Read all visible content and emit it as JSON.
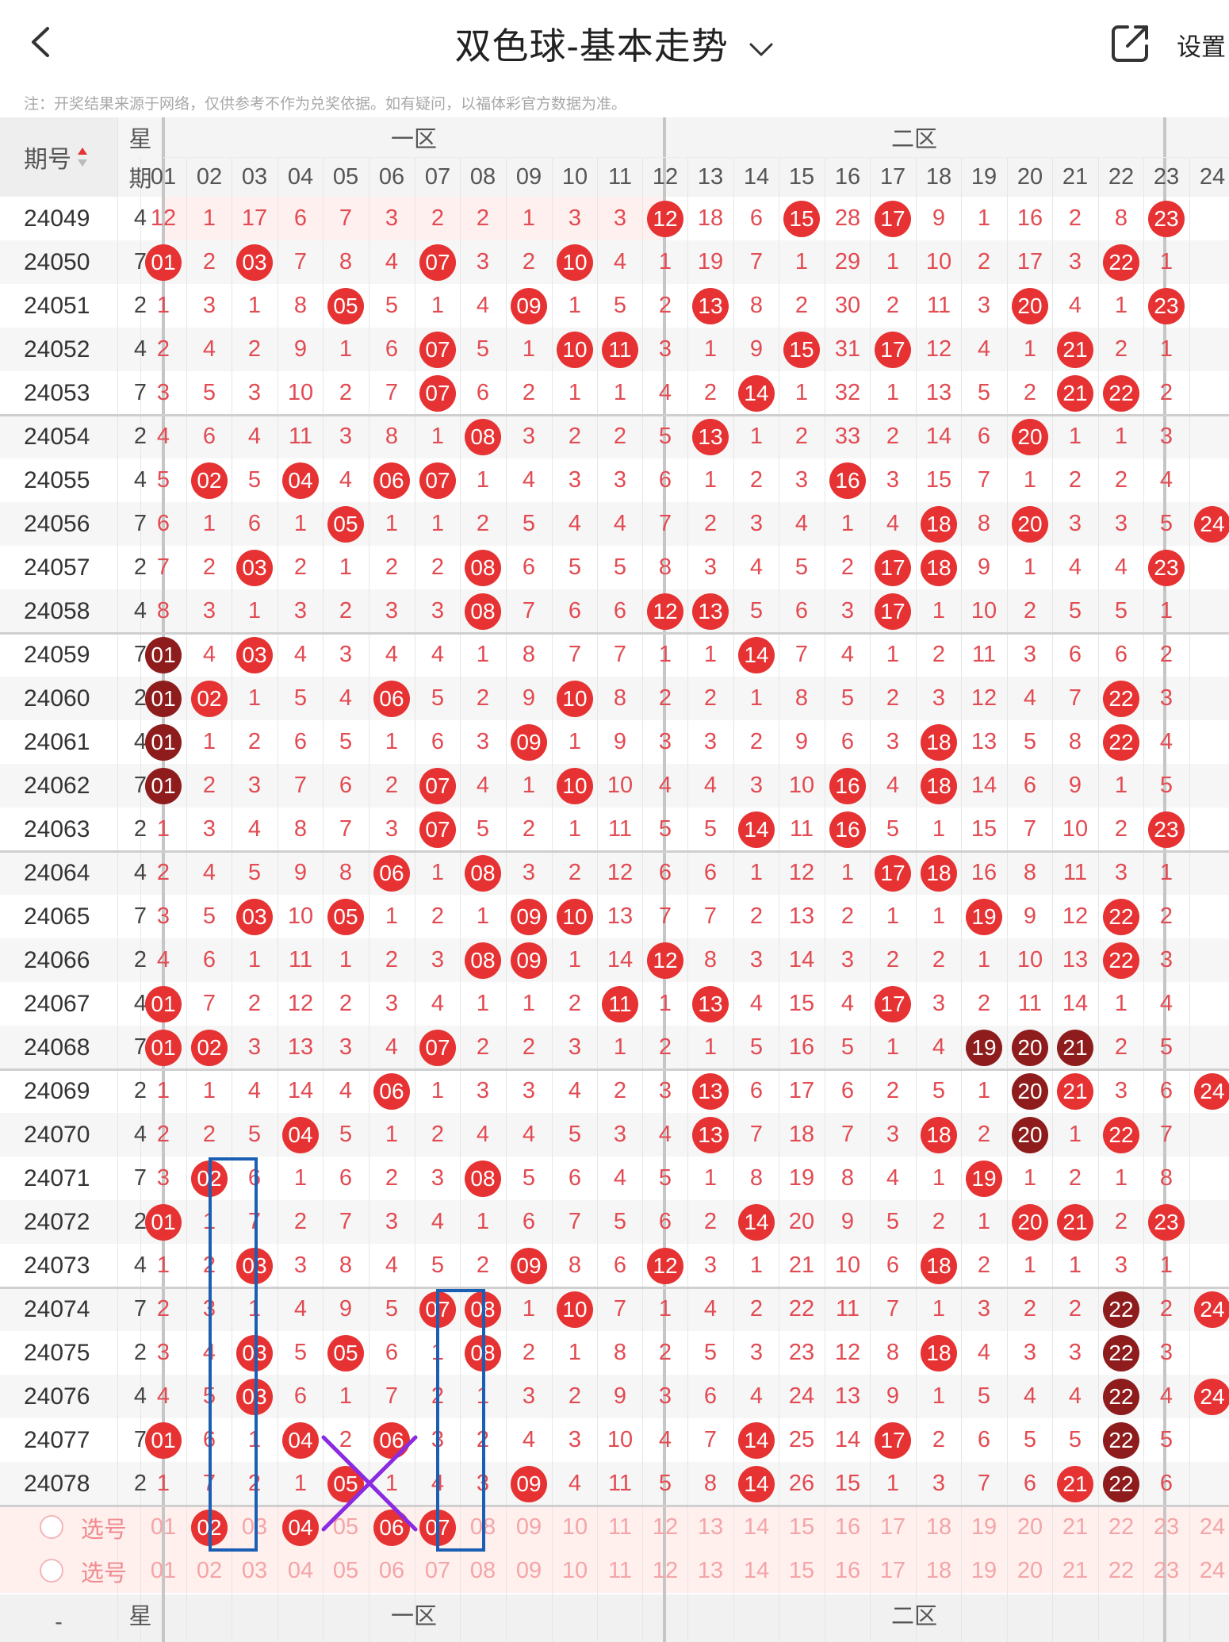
{
  "header": {
    "title": "双色球-基本走势",
    "settings_label": "设置",
    "notice": "注：开奖结果来源于网络，仅供参考不作为兑奖依据。如有疑问，以福体彩官方数据为准。"
  },
  "icons": {
    "back": "chevron-left-icon",
    "title_dropdown": "chevron-down-icon",
    "share": "share-icon",
    "sort": "sort-icon"
  },
  "colors": {
    "ball": "#e63232",
    "ball_repeat": "#8e1c1c",
    "miss_text": "#e24b52",
    "mark_box": "#1a5fb4",
    "mark_cross": "#8a2be2"
  },
  "table": {
    "issue_header": "期号",
    "week_header": "星期",
    "zone_labels": [
      "一区",
      "二区"
    ],
    "columns": [
      "01",
      "02",
      "03",
      "04",
      "05",
      "06",
      "07",
      "08",
      "09",
      "10",
      "11",
      "12",
      "13",
      "14",
      "15",
      "16",
      "17",
      "18",
      "19",
      "20",
      "21",
      "22",
      "23",
      "24"
    ],
    "rows": [
      {
        "issue": "24049",
        "week": "4",
        "cells": [
          "12",
          "1",
          "17",
          "6",
          "7",
          "3",
          "2",
          "2",
          "1",
          "3",
          "3",
          "B12",
          "18",
          "6",
          "B15",
          "28",
          "B17",
          "9",
          "1",
          "16",
          "2",
          "8",
          "B23",
          ""
        ]
      },
      {
        "issue": "24050",
        "week": "7",
        "cells": [
          "B01",
          "2",
          "B03",
          "7",
          "8",
          "4",
          "B07",
          "3",
          "2",
          "B10",
          "4",
          "1",
          "19",
          "7",
          "1",
          "29",
          "1",
          "10",
          "2",
          "17",
          "3",
          "B22",
          "1",
          ""
        ]
      },
      {
        "issue": "24051",
        "week": "2",
        "cells": [
          "1",
          "3",
          "1",
          "8",
          "B05",
          "5",
          "1",
          "4",
          "B09",
          "1",
          "5",
          "2",
          "B13",
          "8",
          "2",
          "30",
          "2",
          "11",
          "3",
          "B20",
          "4",
          "1",
          "B23",
          ""
        ]
      },
      {
        "issue": "24052",
        "week": "4",
        "cells": [
          "2",
          "4",
          "2",
          "9",
          "1",
          "6",
          "B07",
          "5",
          "1",
          "B10",
          "B11",
          "3",
          "1",
          "9",
          "B15",
          "31",
          "B17",
          "12",
          "4",
          "1",
          "B21",
          "2",
          "1",
          ""
        ]
      },
      {
        "issue": "24053",
        "week": "7",
        "cells": [
          "3",
          "5",
          "3",
          "10",
          "2",
          "7",
          "B07",
          "6",
          "2",
          "1",
          "1",
          "4",
          "2",
          "B14",
          "1",
          "32",
          "1",
          "13",
          "5",
          "2",
          "B21",
          "B22",
          "2",
          ""
        ]
      },
      {
        "issue": "24054",
        "week": "2",
        "cells": [
          "4",
          "6",
          "4",
          "11",
          "3",
          "8",
          "1",
          "B08",
          "3",
          "2",
          "2",
          "5",
          "B13",
          "1",
          "2",
          "33",
          "2",
          "14",
          "6",
          "B20",
          "1",
          "1",
          "3",
          ""
        ]
      },
      {
        "issue": "24055",
        "week": "4",
        "cells": [
          "5",
          "B02",
          "5",
          "B04",
          "4",
          "B06",
          "B07",
          "1",
          "4",
          "3",
          "3",
          "6",
          "1",
          "2",
          "3",
          "B16",
          "3",
          "15",
          "7",
          "1",
          "2",
          "2",
          "4",
          ""
        ]
      },
      {
        "issue": "24056",
        "week": "7",
        "cells": [
          "6",
          "1",
          "6",
          "1",
          "B05",
          "1",
          "1",
          "2",
          "5",
          "4",
          "4",
          "7",
          "2",
          "3",
          "4",
          "1",
          "4",
          "B18",
          "8",
          "B20",
          "3",
          "3",
          "5",
          "B24"
        ]
      },
      {
        "issue": "24057",
        "week": "2",
        "cells": [
          "7",
          "2",
          "B03",
          "2",
          "1",
          "2",
          "2",
          "B08",
          "6",
          "5",
          "5",
          "8",
          "3",
          "4",
          "5",
          "2",
          "B17",
          "B18",
          "9",
          "1",
          "4",
          "4",
          "B23",
          ""
        ]
      },
      {
        "issue": "24058",
        "week": "4",
        "cells": [
          "8",
          "3",
          "1",
          "3",
          "2",
          "3",
          "3",
          "B08",
          "7",
          "6",
          "6",
          "B12",
          "B13",
          "5",
          "6",
          "3",
          "B17",
          "1",
          "10",
          "2",
          "5",
          "5",
          "1",
          ""
        ]
      },
      {
        "issue": "24059",
        "week": "7",
        "cells": [
          "D01",
          "4",
          "B03",
          "4",
          "3",
          "4",
          "4",
          "1",
          "8",
          "7",
          "7",
          "1",
          "1",
          "B14",
          "7",
          "4",
          "1",
          "2",
          "11",
          "3",
          "6",
          "6",
          "2",
          ""
        ]
      },
      {
        "issue": "24060",
        "week": "2",
        "cells": [
          "D01",
          "B02",
          "1",
          "5",
          "4",
          "B06",
          "5",
          "2",
          "9",
          "B10",
          "8",
          "2",
          "2",
          "1",
          "8",
          "5",
          "2",
          "3",
          "12",
          "4",
          "7",
          "B22",
          "3",
          ""
        ]
      },
      {
        "issue": "24061",
        "week": "4",
        "cells": [
          "D01",
          "1",
          "2",
          "6",
          "5",
          "1",
          "6",
          "3",
          "B09",
          "1",
          "9",
          "3",
          "3",
          "2",
          "9",
          "6",
          "3",
          "B18",
          "13",
          "5",
          "8",
          "B22",
          "4",
          ""
        ]
      },
      {
        "issue": "24062",
        "week": "7",
        "cells": [
          "D01",
          "2",
          "3",
          "7",
          "6",
          "2",
          "B07",
          "4",
          "1",
          "B10",
          "10",
          "4",
          "4",
          "3",
          "10",
          "B16",
          "4",
          "B18",
          "14",
          "6",
          "9",
          "1",
          "5",
          ""
        ]
      },
      {
        "issue": "24063",
        "week": "2",
        "cells": [
          "1",
          "3",
          "4",
          "8",
          "7",
          "3",
          "B07",
          "5",
          "2",
          "1",
          "11",
          "5",
          "5",
          "B14",
          "11",
          "B16",
          "5",
          "1",
          "15",
          "7",
          "10",
          "2",
          "B23",
          ""
        ]
      },
      {
        "issue": "24064",
        "week": "4",
        "cells": [
          "2",
          "4",
          "5",
          "9",
          "8",
          "B06",
          "1",
          "B08",
          "3",
          "2",
          "12",
          "6",
          "6",
          "1",
          "12",
          "1",
          "B17",
          "B18",
          "16",
          "8",
          "11",
          "3",
          "1",
          ""
        ]
      },
      {
        "issue": "24065",
        "week": "7",
        "cells": [
          "3",
          "5",
          "B03",
          "10",
          "B05",
          "1",
          "2",
          "1",
          "B09",
          "B10",
          "13",
          "7",
          "7",
          "2",
          "13",
          "2",
          "1",
          "1",
          "B19",
          "9",
          "12",
          "B22",
          "2",
          ""
        ]
      },
      {
        "issue": "24066",
        "week": "2",
        "cells": [
          "4",
          "6",
          "1",
          "11",
          "1",
          "2",
          "3",
          "B08",
          "B09",
          "1",
          "14",
          "B12",
          "8",
          "3",
          "14",
          "3",
          "2",
          "2",
          "1",
          "10",
          "13",
          "B22",
          "3",
          ""
        ]
      },
      {
        "issue": "24067",
        "week": "4",
        "cells": [
          "B01",
          "7",
          "2",
          "12",
          "2",
          "3",
          "4",
          "1",
          "1",
          "2",
          "B11",
          "1",
          "B13",
          "4",
          "15",
          "4",
          "B17",
          "3",
          "2",
          "11",
          "14",
          "1",
          "4",
          ""
        ]
      },
      {
        "issue": "24068",
        "week": "7",
        "cells": [
          "B01",
          "B02",
          "3",
          "13",
          "3",
          "4",
          "B07",
          "2",
          "2",
          "3",
          "1",
          "2",
          "1",
          "5",
          "16",
          "5",
          "1",
          "4",
          "D19",
          "D20",
          "D21",
          "2",
          "5",
          ""
        ]
      },
      {
        "issue": "24069",
        "week": "2",
        "cells": [
          "1",
          "1",
          "4",
          "14",
          "4",
          "B06",
          "1",
          "3",
          "3",
          "4",
          "2",
          "3",
          "B13",
          "6",
          "17",
          "6",
          "2",
          "5",
          "1",
          "D20",
          "B21",
          "3",
          "6",
          "B24"
        ]
      },
      {
        "issue": "24070",
        "week": "4",
        "cells": [
          "2",
          "2",
          "5",
          "B04",
          "5",
          "1",
          "2",
          "4",
          "4",
          "5",
          "3",
          "4",
          "B13",
          "7",
          "18",
          "7",
          "3",
          "B18",
          "2",
          "D20",
          "1",
          "B22",
          "7",
          ""
        ]
      },
      {
        "issue": "24071",
        "week": "7",
        "cells": [
          "3",
          "B02",
          "6",
          "1",
          "6",
          "2",
          "3",
          "B08",
          "5",
          "6",
          "4",
          "5",
          "1",
          "8",
          "19",
          "8",
          "4",
          "1",
          "B19",
          "1",
          "2",
          "1",
          "8",
          ""
        ]
      },
      {
        "issue": "24072",
        "week": "2",
        "cells": [
          "B01",
          "1",
          "7",
          "2",
          "7",
          "3",
          "4",
          "1",
          "6",
          "7",
          "5",
          "6",
          "2",
          "B14",
          "20",
          "9",
          "5",
          "2",
          "1",
          "B20",
          "B21",
          "2",
          "B23",
          ""
        ]
      },
      {
        "issue": "24073",
        "week": "4",
        "cells": [
          "1",
          "2",
          "B03",
          "3",
          "8",
          "4",
          "5",
          "2",
          "B09",
          "8",
          "6",
          "B12",
          "3",
          "1",
          "21",
          "10",
          "6",
          "B18",
          "2",
          "1",
          "1",
          "3",
          "1",
          ""
        ]
      },
      {
        "issue": "24074",
        "week": "7",
        "cells": [
          "2",
          "3",
          "1",
          "4",
          "9",
          "5",
          "B07",
          "B08",
          "1",
          "B10",
          "7",
          "1",
          "4",
          "2",
          "22",
          "11",
          "7",
          "1",
          "3",
          "2",
          "2",
          "D22",
          "2",
          "B24"
        ]
      },
      {
        "issue": "24075",
        "week": "2",
        "cells": [
          "3",
          "4",
          "B03",
          "5",
          "B05",
          "6",
          "1",
          "B08",
          "2",
          "1",
          "8",
          "2",
          "5",
          "3",
          "23",
          "12",
          "8",
          "B18",
          "4",
          "3",
          "3",
          "D22",
          "3",
          ""
        ]
      },
      {
        "issue": "24076",
        "week": "4",
        "cells": [
          "4",
          "5",
          "B03",
          "6",
          "1",
          "7",
          "2",
          "1",
          "3",
          "2",
          "9",
          "3",
          "6",
          "4",
          "24",
          "13",
          "9",
          "1",
          "5",
          "4",
          "4",
          "D22",
          "4",
          "B24"
        ]
      },
      {
        "issue": "24077",
        "week": "7",
        "cells": [
          "B01",
          "6",
          "1",
          "B04",
          "2",
          "B06",
          "3",
          "2",
          "4",
          "3",
          "10",
          "4",
          "7",
          "B14",
          "25",
          "14",
          "B17",
          "2",
          "6",
          "5",
          "5",
          "D22",
          "5",
          ""
        ]
      },
      {
        "issue": "24078",
        "week": "2",
        "cells": [
          "1",
          "7",
          "2",
          "1",
          "B05",
          "1",
          "4",
          "3",
          "B09",
          "4",
          "11",
          "5",
          "8",
          "B14",
          "26",
          "15",
          "1",
          "3",
          "7",
          "6",
          "B21",
          "D22",
          "6",
          ""
        ]
      }
    ],
    "select_label": "选号",
    "select_rows": [
      {
        "selected": [
          "02",
          "04",
          "06",
          "07"
        ]
      },
      {
        "selected": []
      }
    ],
    "footer_week_header": "星期",
    "footer_issue_header": "-"
  }
}
